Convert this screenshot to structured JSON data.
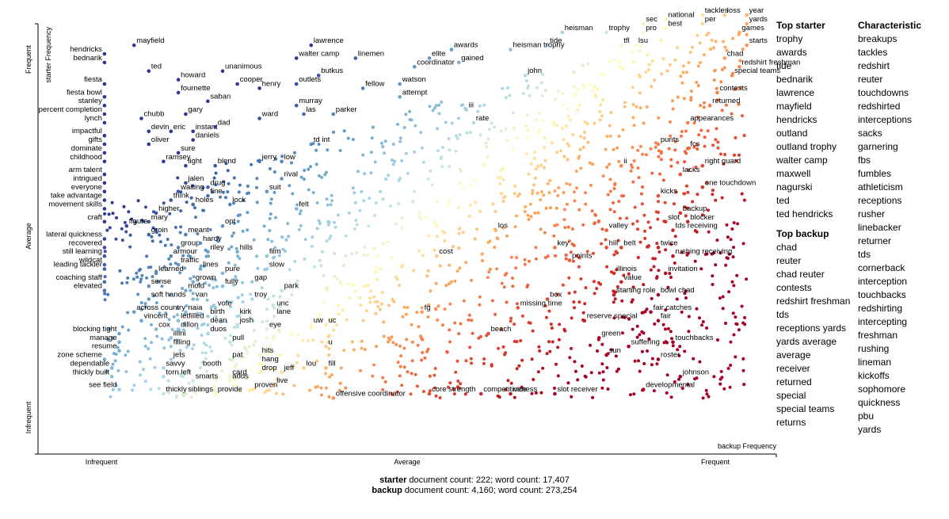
{
  "chart_data": {
    "type": "scatter",
    "x_axis": {
      "title": "backup Frequency",
      "ticks": [
        "Infrequent",
        "Average",
        "Frequent"
      ]
    },
    "y_axis": {
      "title": "starter Frequency",
      "ticks": [
        "Frequent",
        "Average",
        "Infrequent"
      ]
    },
    "legend": "none",
    "color_scale": [
      "#313695",
      "#4575b4",
      "#74add1",
      "#abd9e9",
      "#ffffbf",
      "#fdae61",
      "#f46d43",
      "#d73027",
      "#a50026"
    ],
    "points": [
      {
        "term": "hendricks",
        "x": 0.09,
        "y": 0.93
      },
      {
        "term": "mayfield",
        "x": 0.13,
        "y": 0.95
      },
      {
        "term": "bednarik",
        "x": 0.09,
        "y": 0.91
      },
      {
        "term": "ted",
        "x": 0.15,
        "y": 0.89
      },
      {
        "term": "howard",
        "x": 0.19,
        "y": 0.87
      },
      {
        "term": "fiesta",
        "x": 0.09,
        "y": 0.86
      },
      {
        "term": "fournette",
        "x": 0.19,
        "y": 0.84
      },
      {
        "term": "fiesta bowl",
        "x": 0.09,
        "y": 0.83
      },
      {
        "term": "stanley",
        "x": 0.09,
        "y": 0.81
      },
      {
        "term": "percent completion",
        "x": 0.09,
        "y": 0.79
      },
      {
        "term": "chubb",
        "x": 0.14,
        "y": 0.78
      },
      {
        "term": "lynch",
        "x": 0.09,
        "y": 0.77
      },
      {
        "term": "impactful",
        "x": 0.09,
        "y": 0.74
      },
      {
        "term": "devin",
        "x": 0.15,
        "y": 0.75
      },
      {
        "term": "eric",
        "x": 0.18,
        "y": 0.75
      },
      {
        "term": "gifts",
        "x": 0.09,
        "y": 0.72
      },
      {
        "term": "oliver",
        "x": 0.15,
        "y": 0.72
      },
      {
        "term": "dominate",
        "x": 0.09,
        "y": 0.7
      },
      {
        "term": "sure",
        "x": 0.19,
        "y": 0.7
      },
      {
        "term": "childhood",
        "x": 0.09,
        "y": 0.68
      },
      {
        "term": "ramsey",
        "x": 0.17,
        "y": 0.68
      },
      {
        "term": "light",
        "x": 0.2,
        "y": 0.67
      },
      {
        "term": "arm talent",
        "x": 0.09,
        "y": 0.65
      },
      {
        "term": "intrigued",
        "x": 0.09,
        "y": 0.63
      },
      {
        "term": "jalen",
        "x": 0.2,
        "y": 0.63
      },
      {
        "term": "everyone",
        "x": 0.09,
        "y": 0.61
      },
      {
        "term": "waiting",
        "x": 0.19,
        "y": 0.61
      },
      {
        "term": "take advantage",
        "x": 0.09,
        "y": 0.59
      },
      {
        "term": "think",
        "x": 0.18,
        "y": 0.59
      },
      {
        "term": "holes",
        "x": 0.21,
        "y": 0.58
      },
      {
        "term": "movement skills",
        "x": 0.09,
        "y": 0.57
      },
      {
        "term": "higher",
        "x": 0.16,
        "y": 0.56
      },
      {
        "term": "craft",
        "x": 0.09,
        "y": 0.54
      },
      {
        "term": "mary",
        "x": 0.15,
        "y": 0.54
      },
      {
        "term": "figure",
        "x": 0.12,
        "y": 0.53
      },
      {
        "term": "groin",
        "x": 0.15,
        "y": 0.51
      },
      {
        "term": "meant",
        "x": 0.2,
        "y": 0.51
      },
      {
        "term": "lateral quickness",
        "x": 0.09,
        "y": 0.5
      },
      {
        "term": "recovered",
        "x": 0.09,
        "y": 0.48
      },
      {
        "term": "group",
        "x": 0.19,
        "y": 0.48
      },
      {
        "term": "still learning",
        "x": 0.09,
        "y": 0.46
      },
      {
        "term": "armour",
        "x": 0.18,
        "y": 0.46
      },
      {
        "term": "wildcat",
        "x": 0.09,
        "y": 0.44
      },
      {
        "term": "traffic",
        "x": 0.19,
        "y": 0.44
      },
      {
        "term": "leading tackler",
        "x": 0.09,
        "y": 0.43
      },
      {
        "term": "learned",
        "x": 0.16,
        "y": 0.42
      },
      {
        "term": "coaching staff",
        "x": 0.09,
        "y": 0.4
      },
      {
        "term": "sense",
        "x": 0.15,
        "y": 0.39
      },
      {
        "term": "elevated",
        "x": 0.09,
        "y": 0.38
      },
      {
        "term": "soft hands",
        "x": 0.15,
        "y": 0.36
      },
      {
        "term": "across country",
        "x": 0.13,
        "y": 0.33
      },
      {
        "term": "vincent",
        "x": 0.14,
        "y": 0.31
      },
      {
        "term": "cox",
        "x": 0.16,
        "y": 0.29
      },
      {
        "term": "blocking tight",
        "x": 0.11,
        "y": 0.28
      },
      {
        "term": "manage",
        "x": 0.11,
        "y": 0.26
      },
      {
        "term": "resume",
        "x": 0.11,
        "y": 0.24
      },
      {
        "term": "zone scheme",
        "x": 0.09,
        "y": 0.22
      },
      {
        "term": "dependable",
        "x": 0.1,
        "y": 0.2
      },
      {
        "term": "thickly built",
        "x": 0.1,
        "y": 0.18
      },
      {
        "term": "see field",
        "x": 0.11,
        "y": 0.15
      },
      {
        "term": "thickly",
        "x": 0.17,
        "y": 0.14
      },
      {
        "term": "savvy",
        "x": 0.17,
        "y": 0.2
      },
      {
        "term": "torn left",
        "x": 0.17,
        "y": 0.18
      },
      {
        "term": "jets",
        "x": 0.18,
        "y": 0.22
      },
      {
        "term": "filling",
        "x": 0.18,
        "y": 0.25
      },
      {
        "term": "illini",
        "x": 0.18,
        "y": 0.27
      },
      {
        "term": "dillon",
        "x": 0.19,
        "y": 0.29
      },
      {
        "term": "letfilled",
        "x": 0.19,
        "y": 0.31
      },
      {
        "term": "naia",
        "x": 0.2,
        "y": 0.33
      },
      {
        "term": "van",
        "x": 0.21,
        "y": 0.36
      },
      {
        "term": "mold",
        "x": 0.2,
        "y": 0.38
      },
      {
        "term": "grown",
        "x": 0.21,
        "y": 0.4
      },
      {
        "term": "lines",
        "x": 0.22,
        "y": 0.43
      },
      {
        "term": "riley",
        "x": 0.23,
        "y": 0.47
      },
      {
        "term": "hardy",
        "x": 0.22,
        "y": 0.49
      },
      {
        "term": "opt",
        "x": 0.25,
        "y": 0.53
      },
      {
        "term": "lock",
        "x": 0.26,
        "y": 0.58
      },
      {
        "term": "fine",
        "x": 0.23,
        "y": 0.6
      },
      {
        "term": "drug",
        "x": 0.23,
        "y": 0.62
      },
      {
        "term": "blend",
        "x": 0.24,
        "y": 0.67
      },
      {
        "term": "daniels",
        "x": 0.21,
        "y": 0.73
      },
      {
        "term": "instant",
        "x": 0.21,
        "y": 0.75
      },
      {
        "term": "dad",
        "x": 0.24,
        "y": 0.76
      },
      {
        "term": "gary",
        "x": 0.2,
        "y": 0.79
      },
      {
        "term": "saban",
        "x": 0.23,
        "y": 0.82
      },
      {
        "term": "unanimous",
        "x": 0.25,
        "y": 0.89
      },
      {
        "term": "cooper",
        "x": 0.27,
        "y": 0.86
      },
      {
        "term": "henry",
        "x": 0.3,
        "y": 0.85
      },
      {
        "term": "outlets",
        "x": 0.35,
        "y": 0.86
      },
      {
        "term": "ward",
        "x": 0.3,
        "y": 0.78
      },
      {
        "term": "lawrence",
        "x": 0.37,
        "y": 0.95
      },
      {
        "term": "walter camp",
        "x": 0.35,
        "y": 0.92
      },
      {
        "term": "butkus",
        "x": 0.38,
        "y": 0.88
      },
      {
        "term": "murray",
        "x": 0.35,
        "y": 0.81
      },
      {
        "term": "las",
        "x": 0.36,
        "y": 0.79
      },
      {
        "term": "parker",
        "x": 0.4,
        "y": 0.79
      },
      {
        "term": "linemen",
        "x": 0.43,
        "y": 0.92
      },
      {
        "term": "fellow",
        "x": 0.44,
        "y": 0.85
      },
      {
        "term": "td int",
        "x": 0.37,
        "y": 0.72
      },
      {
        "term": "jerry",
        "x": 0.3,
        "y": 0.68
      },
      {
        "term": "low",
        "x": 0.33,
        "y": 0.68
      },
      {
        "term": "rival",
        "x": 0.33,
        "y": 0.64
      },
      {
        "term": "suit",
        "x": 0.31,
        "y": 0.61
      },
      {
        "term": "felt",
        "x": 0.35,
        "y": 0.57
      },
      {
        "term": "hills",
        "x": 0.27,
        "y": 0.47
      },
      {
        "term": "film",
        "x": 0.31,
        "y": 0.46
      },
      {
        "term": "slow",
        "x": 0.31,
        "y": 0.43
      },
      {
        "term": "pure",
        "x": 0.25,
        "y": 0.42
      },
      {
        "term": "gap",
        "x": 0.29,
        "y": 0.4
      },
      {
        "term": "fully",
        "x": 0.25,
        "y": 0.39
      },
      {
        "term": "park",
        "x": 0.33,
        "y": 0.38
      },
      {
        "term": "troy",
        "x": 0.29,
        "y": 0.36
      },
      {
        "term": "vote",
        "x": 0.24,
        "y": 0.34
      },
      {
        "term": "unc",
        "x": 0.32,
        "y": 0.34
      },
      {
        "term": "birth",
        "x": 0.23,
        "y": 0.32
      },
      {
        "term": "kirk",
        "x": 0.27,
        "y": 0.32
      },
      {
        "term": "lane",
        "x": 0.32,
        "y": 0.32
      },
      {
        "term": "dean",
        "x": 0.23,
        "y": 0.3
      },
      {
        "term": "josh",
        "x": 0.27,
        "y": 0.3
      },
      {
        "term": "eye",
        "x": 0.31,
        "y": 0.29
      },
      {
        "term": "duos",
        "x": 0.23,
        "y": 0.28
      },
      {
        "term": "pull",
        "x": 0.26,
        "y": 0.26
      },
      {
        "term": "pat",
        "x": 0.26,
        "y": 0.22
      },
      {
        "term": "hits",
        "x": 0.3,
        "y": 0.23
      },
      {
        "term": "hang",
        "x": 0.3,
        "y": 0.21
      },
      {
        "term": "booth",
        "x": 0.22,
        "y": 0.2
      },
      {
        "term": "drop",
        "x": 0.3,
        "y": 0.19
      },
      {
        "term": "jeff",
        "x": 0.33,
        "y": 0.19
      },
      {
        "term": "card",
        "x": 0.26,
        "y": 0.18
      },
      {
        "term": "smarts",
        "x": 0.21,
        "y": 0.17
      },
      {
        "term": "adds",
        "x": 0.26,
        "y": 0.17
      },
      {
        "term": "live",
        "x": 0.32,
        "y": 0.16
      },
      {
        "term": "siblings",
        "x": 0.2,
        "y": 0.14
      },
      {
        "term": "provide",
        "x": 0.24,
        "y": 0.14
      },
      {
        "term": "proven",
        "x": 0.29,
        "y": 0.15
      },
      {
        "term": "lou",
        "x": 0.36,
        "y": 0.2
      },
      {
        "term": "fill",
        "x": 0.39,
        "y": 0.2
      },
      {
        "term": "u",
        "x": 0.39,
        "y": 0.25
      },
      {
        "term": "uw",
        "x": 0.37,
        "y": 0.3
      },
      {
        "term": "uc",
        "x": 0.39,
        "y": 0.3
      },
      {
        "term": "offensive coordinator",
        "x": 0.4,
        "y": 0.13
      },
      {
        "term": "fg",
        "x": 0.52,
        "y": 0.33
      },
      {
        "term": "cost",
        "x": 0.54,
        "y": 0.46
      },
      {
        "term": "core strength",
        "x": 0.53,
        "y": 0.14
      },
      {
        "term": "competitiveness",
        "x": 0.6,
        "y": 0.14
      },
      {
        "term": "nice",
        "x": 0.64,
        "y": 0.14
      },
      {
        "term": "slot receiver",
        "x": 0.7,
        "y": 0.14
      },
      {
        "term": "beach",
        "x": 0.61,
        "y": 0.28
      },
      {
        "term": "missing time",
        "x": 0.65,
        "y": 0.34
      },
      {
        "term": "box",
        "x": 0.69,
        "y": 0.36
      },
      {
        "term": "los",
        "x": 0.62,
        "y": 0.52
      },
      {
        "term": "key",
        "x": 0.7,
        "y": 0.48
      },
      {
        "term": "points",
        "x": 0.72,
        "y": 0.45
      },
      {
        "term": "reserve special",
        "x": 0.74,
        "y": 0.31
      },
      {
        "term": "green",
        "x": 0.76,
        "y": 0.27
      },
      {
        "term": "sun",
        "x": 0.77,
        "y": 0.23
      },
      {
        "term": "suffering",
        "x": 0.8,
        "y": 0.25
      },
      {
        "term": "developmental",
        "x": 0.82,
        "y": 0.15
      },
      {
        "term": "starting role",
        "x": 0.78,
        "y": 0.37
      },
      {
        "term": "value",
        "x": 0.79,
        "y": 0.4
      },
      {
        "term": "illinois",
        "x": 0.78,
        "y": 0.42
      },
      {
        "term": "hill",
        "x": 0.77,
        "y": 0.48
      },
      {
        "term": "belt",
        "x": 0.79,
        "y": 0.48
      },
      {
        "term": "valley",
        "x": 0.77,
        "y": 0.52
      },
      {
        "term": "fair catches",
        "x": 0.83,
        "y": 0.33
      },
      {
        "term": "fair",
        "x": 0.84,
        "y": 0.31
      },
      {
        "term": "bowl chad",
        "x": 0.84,
        "y": 0.37
      },
      {
        "term": "touchbacks",
        "x": 0.86,
        "y": 0.26
      },
      {
        "term": "roster",
        "x": 0.84,
        "y": 0.22
      },
      {
        "term": "johnson",
        "x": 0.87,
        "y": 0.18
      },
      {
        "term": "invitation",
        "x": 0.85,
        "y": 0.42
      },
      {
        "term": "twice",
        "x": 0.84,
        "y": 0.48
      },
      {
        "term": "rushing receiving",
        "x": 0.86,
        "y": 0.46
      },
      {
        "term": "tds receiving",
        "x": 0.86,
        "y": 0.52
      },
      {
        "term": "slot",
        "x": 0.85,
        "y": 0.54
      },
      {
        "term": "blocker",
        "x": 0.88,
        "y": 0.54
      },
      {
        "term": "backup",
        "x": 0.87,
        "y": 0.56
      },
      {
        "term": "kicks",
        "x": 0.84,
        "y": 0.6
      },
      {
        "term": "one touchdown",
        "x": 0.9,
        "y": 0.62
      },
      {
        "term": "lacks",
        "x": 0.87,
        "y": 0.65
      },
      {
        "term": "right guard",
        "x": 0.9,
        "y": 0.67
      },
      {
        "term": "ii",
        "x": 0.79,
        "y": 0.67
      },
      {
        "term": "punts",
        "x": 0.84,
        "y": 0.72
      },
      {
        "term": "fcs",
        "x": 0.88,
        "y": 0.71
      },
      {
        "term": "appearances",
        "x": 0.88,
        "y": 0.77
      },
      {
        "term": "returned",
        "x": 0.91,
        "y": 0.81
      },
      {
        "term": "contests",
        "x": 0.92,
        "y": 0.84
      },
      {
        "term": "special teams",
        "x": 0.94,
        "y": 0.88
      },
      {
        "term": "redshirt freshman",
        "x": 0.95,
        "y": 0.9
      },
      {
        "term": "chad",
        "x": 0.93,
        "y": 0.92
      },
      {
        "term": "starts",
        "x": 0.96,
        "y": 0.95
      },
      {
        "term": "games",
        "x": 0.95,
        "y": 0.98
      },
      {
        "term": "yards",
        "x": 0.96,
        "y": 1.0
      },
      {
        "term": "per",
        "x": 0.9,
        "y": 1.0
      },
      {
        "term": "tackles",
        "x": 0.9,
        "y": 1.02
      },
      {
        "term": "loss",
        "x": 0.93,
        "y": 1.02
      },
      {
        "term": "year",
        "x": 0.96,
        "y": 1.02
      },
      {
        "term": "national",
        "x": 0.85,
        "y": 1.01
      },
      {
        "term": "best",
        "x": 0.85,
        "y": 0.99
      },
      {
        "term": "sec",
        "x": 0.82,
        "y": 1.0
      },
      {
        "term": "pro",
        "x": 0.82,
        "y": 0.98
      },
      {
        "term": "trophy",
        "x": 0.77,
        "y": 0.98
      },
      {
        "term": "tfl",
        "x": 0.79,
        "y": 0.95
      },
      {
        "term": "lsu",
        "x": 0.81,
        "y": 0.95
      },
      {
        "term": "heisman",
        "x": 0.71,
        "y": 0.98
      },
      {
        "term": "tide",
        "x": 0.69,
        "y": 0.95
      },
      {
        "term": "heisman trophy",
        "x": 0.64,
        "y": 0.94
      },
      {
        "term": "john",
        "x": 0.66,
        "y": 0.88
      },
      {
        "term": "awards",
        "x": 0.56,
        "y": 0.94
      },
      {
        "term": "elite",
        "x": 0.53,
        "y": 0.92
      },
      {
        "term": "gained",
        "x": 0.57,
        "y": 0.91
      },
      {
        "term": "coordinator",
        "x": 0.51,
        "y": 0.9
      },
      {
        "term": "watson",
        "x": 0.49,
        "y": 0.86
      },
      {
        "term": "attempt",
        "x": 0.49,
        "y": 0.83
      },
      {
        "term": "iii",
        "x": 0.58,
        "y": 0.8
      },
      {
        "term": "rate",
        "x": 0.59,
        "y": 0.77
      }
    ],
    "top_starter_header": "Top starter",
    "top_starter": [
      "trophy",
      "awards",
      "tide",
      "bednarik",
      "lawrence",
      "mayfield",
      "hendricks",
      "outland",
      "outland trophy",
      "walter camp",
      "maxwell",
      "nagurski",
      "ted",
      "ted hendricks"
    ],
    "top_backup_header": "Top backup",
    "top_backup": [
      "chad",
      "reuter",
      "chad reuter",
      "contests",
      "redshirt freshman",
      "tds",
      "receptions yards",
      "yards average",
      "average",
      "receiver",
      "returned",
      "special",
      "special teams",
      "returns"
    ],
    "characteristic_header": "Characteristic",
    "characteristic": [
      "breakups",
      "tackles",
      "redshirt",
      "reuter",
      "touchdowns",
      "redshirted",
      "interceptions",
      "sacks",
      "garnering",
      "fbs",
      "fumbles",
      "athleticism",
      "receptions",
      "rusher",
      "linebacker",
      "returner",
      "tds",
      "cornerback",
      "interception",
      "touchbacks",
      "redshirting",
      "intercepting",
      "freshman",
      "rushing",
      "lineman",
      "kickoffs",
      "sophomore",
      "quickness",
      "pbu",
      "yards"
    ]
  },
  "summary": {
    "starter_label": "starter",
    "starter_text": " document count: 222; word count: 17,407",
    "backup_label": "backup",
    "backup_text": " document count: 4,160; word count: 273,254"
  }
}
